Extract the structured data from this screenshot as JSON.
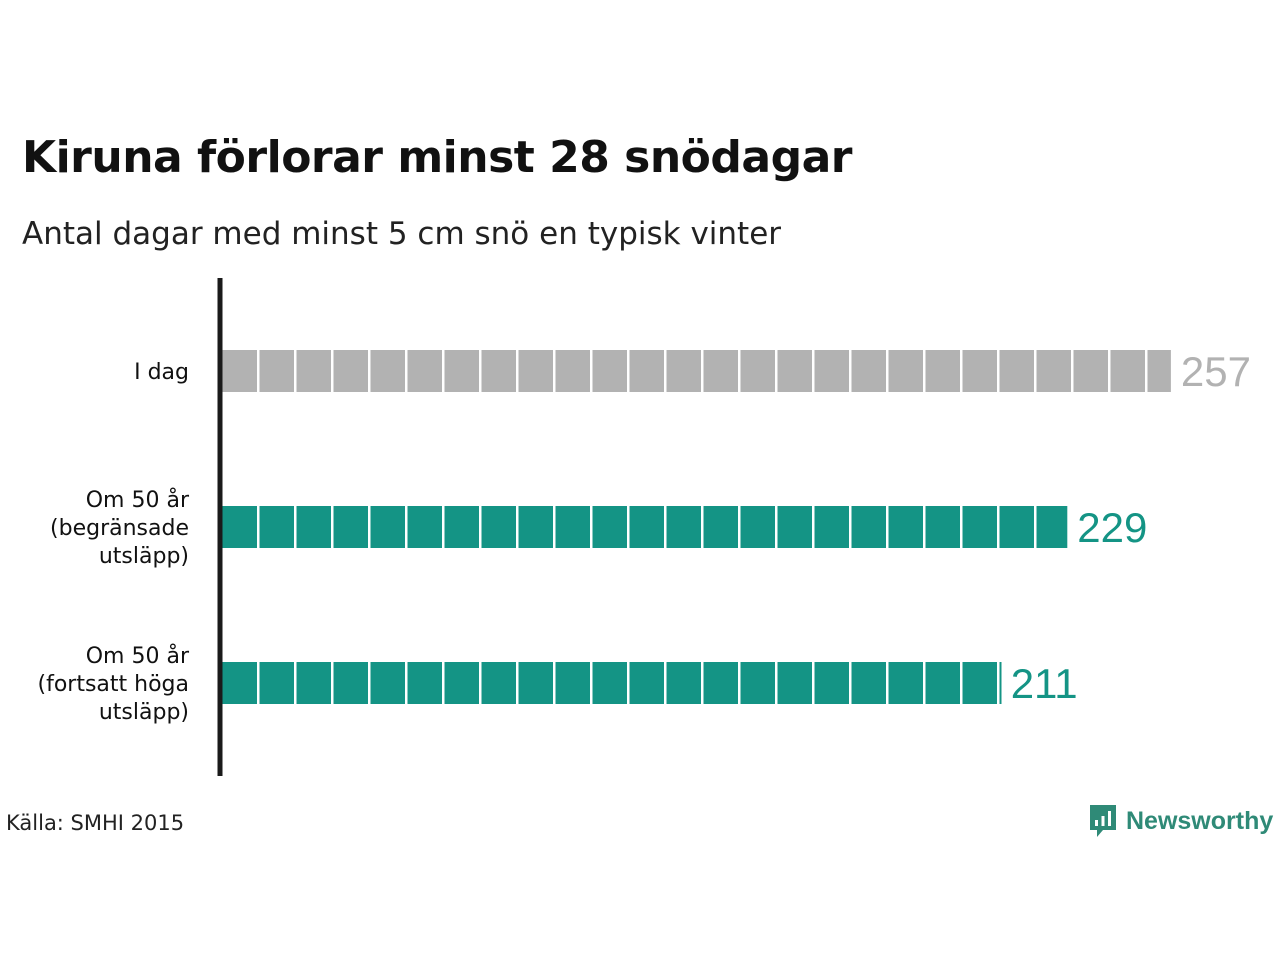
{
  "chart_data": {
    "type": "bar",
    "orientation": "horizontal",
    "title": "Kiruna förlorar minst 28 snödagar",
    "subtitle": "Antal dagar med minst 5 cm snö en typisk vinter",
    "unit_per_block": 10,
    "categories": [
      [
        "I dag"
      ],
      [
        "Om 50 år",
        "(begränsade",
        "utsläpp)"
      ],
      [
        "Om 50 år",
        "(fortsatt höga",
        "utsläpp)"
      ]
    ],
    "values": [
      257,
      229,
      211
    ],
    "colors": [
      "#b2b2b2",
      "#149485",
      "#149485"
    ],
    "xlim": [
      0,
      257
    ]
  },
  "source": "Källa: SMHI 2015",
  "logo": {
    "text": "Newsworthy",
    "icon": "newsworthy-logo-icon",
    "color": "#2f8a77"
  }
}
